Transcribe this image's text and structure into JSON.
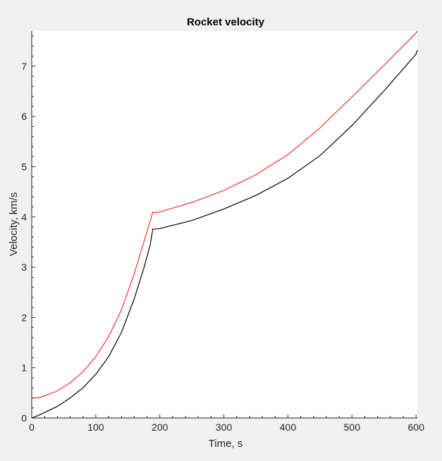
{
  "chart_data": {
    "type": "line",
    "title": "Rocket velocity",
    "xlabel": "Time, s",
    "ylabel": "Velocity, km/s",
    "xlim": [
      0,
      602
    ],
    "ylim": [
      0,
      7.7
    ],
    "xticks": [
      0,
      100,
      200,
      300,
      400,
      500,
      600
    ],
    "yticks": [
      0,
      1,
      2,
      3,
      4,
      5,
      6,
      7
    ],
    "grid": false,
    "legend": "none",
    "series": [
      {
        "color": "#ff3030",
        "x": [
          0,
          10,
          20,
          40,
          60,
          80,
          100,
          120,
          140,
          160,
          175,
          185,
          189,
          192,
          195,
          200,
          250,
          300,
          350,
          400,
          450,
          500,
          550,
          600,
          602
        ],
        "y": [
          0.4,
          0.4,
          0.44,
          0.54,
          0.7,
          0.92,
          1.22,
          1.62,
          2.15,
          2.87,
          3.5,
          3.92,
          4.1,
          4.08,
          4.09,
          4.1,
          4.29,
          4.53,
          4.84,
          5.24,
          5.77,
          6.39,
          7.02,
          7.66,
          7.7
        ]
      },
      {
        "color": "#000000",
        "x": [
          0,
          10,
          20,
          40,
          60,
          80,
          100,
          120,
          140,
          160,
          175,
          185,
          189,
          192,
          195,
          200,
          250,
          300,
          350,
          400,
          450,
          500,
          550,
          600,
          602
        ],
        "y": [
          0.0,
          0.05,
          0.11,
          0.23,
          0.4,
          0.6,
          0.87,
          1.22,
          1.7,
          2.37,
          2.98,
          3.45,
          3.76,
          3.76,
          3.76,
          3.77,
          3.93,
          4.16,
          4.43,
          4.77,
          5.22,
          5.82,
          6.51,
          7.24,
          7.32
        ]
      }
    ]
  }
}
